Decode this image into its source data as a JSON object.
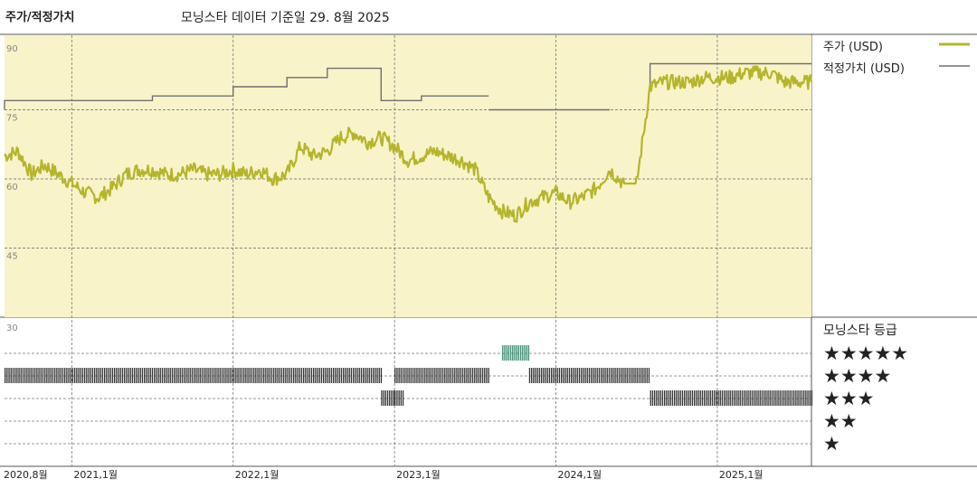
{
  "header": {
    "left_title": "주가/적정가치",
    "main_title": "모닝스타 데이터 기준일 29. 8월 2025"
  },
  "legend": {
    "price_label": "주가 (USD)",
    "fair_label": "적정가치 (USD)",
    "rating_title": "모닝스타 등급"
  },
  "colors": {
    "plot_bg": "#f8f3c9",
    "price": "#b5b52a",
    "fair_value": "#707070",
    "rating_bar": "#333333",
    "rating_five": "#3a8a6e"
  },
  "chart_data": {
    "type": "line",
    "x_range": [
      "2020-08",
      "2025-08"
    ],
    "ylim": [
      30,
      90
    ],
    "y_ticks": [
      90,
      75,
      60,
      45,
      30
    ],
    "x_tick_labels": [
      "2020,8월",
      "2021,1월",
      "2022,1월",
      "2023,1월",
      "2024,1월",
      "2025,1월"
    ],
    "series": [
      {
        "name": "주가 (USD)",
        "points": [
          [
            "2020-08",
            65
          ],
          [
            "2020-09",
            66
          ],
          [
            "2020-10",
            61
          ],
          [
            "2020-11",
            63
          ],
          [
            "2020-12",
            61
          ],
          [
            "2021-01",
            59
          ],
          [
            "2021-02",
            57
          ],
          [
            "2021-03",
            56
          ],
          [
            "2021-04",
            58
          ],
          [
            "2021-05",
            61
          ],
          [
            "2021-06",
            62
          ],
          [
            "2021-07",
            62
          ],
          [
            "2021-08",
            61
          ],
          [
            "2021-09",
            61
          ],
          [
            "2021-10",
            62
          ],
          [
            "2021-11",
            61
          ],
          [
            "2021-12",
            61
          ],
          [
            "2022-01",
            62
          ],
          [
            "2022-02",
            61
          ],
          [
            "2022-03",
            62
          ],
          [
            "2022-04",
            60
          ],
          [
            "2022-05",
            61
          ],
          [
            "2022-06",
            67
          ],
          [
            "2022-07",
            65
          ],
          [
            "2022-08",
            66
          ],
          [
            "2022-09",
            69
          ],
          [
            "2022-10",
            70
          ],
          [
            "2022-11",
            68
          ],
          [
            "2022-12",
            69
          ],
          [
            "2023-01",
            67
          ],
          [
            "2023-02",
            64
          ],
          [
            "2023-03",
            65
          ],
          [
            "2023-04",
            66
          ],
          [
            "2023-05",
            65
          ],
          [
            "2023-06",
            64
          ],
          [
            "2023-07",
            62
          ],
          [
            "2023-08",
            56
          ],
          [
            "2023-09",
            53
          ],
          [
            "2023-10",
            52
          ],
          [
            "2023-11",
            55
          ],
          [
            "2023-12",
            56
          ],
          [
            "2024-01",
            57
          ],
          [
            "2024-02",
            55
          ],
          [
            "2024-03",
            56
          ],
          [
            "2024-04",
            58
          ],
          [
            "2024-05",
            62
          ],
          [
            "2024-06",
            59
          ],
          [
            "2024-07",
            59
          ],
          [
            "2024-08",
            80
          ],
          [
            "2024-09",
            81
          ],
          [
            "2024-10",
            81
          ],
          [
            "2024-11",
            81
          ],
          [
            "2024-12",
            82
          ],
          [
            "2025-01",
            82
          ],
          [
            "2025-02",
            82
          ],
          [
            "2025-03",
            83
          ],
          [
            "2025-04",
            83
          ],
          [
            "2025-05",
            83
          ],
          [
            "2025-06",
            81
          ],
          [
            "2025-07",
            81
          ],
          [
            "2025-08",
            81
          ]
        ]
      },
      {
        "name": "적정가치 (USD)",
        "segments": [
          [
            [
              "2020-08",
              75
            ],
            [
              "2020-08",
              77
            ],
            [
              "2021-07",
              77
            ],
            [
              "2021-07",
              78
            ],
            [
              "2022-01",
              78
            ],
            [
              "2022-01",
              80
            ],
            [
              "2022-05",
              80
            ],
            [
              "2022-05",
              82
            ],
            [
              "2022-08",
              82
            ],
            [
              "2022-08",
              84
            ],
            [
              "2022-12",
              84
            ],
            [
              "2022-12",
              77
            ],
            [
              "2023-03",
              77
            ],
            [
              "2023-03",
              78
            ],
            [
              "2023-08",
              78
            ]
          ],
          [
            [
              "2023-08",
              75
            ],
            [
              "2024-05",
              75
            ]
          ],
          [
            [
              "2024-08",
              80
            ],
            [
              "2024-08",
              85
            ],
            [
              "2025-08",
              85
            ]
          ]
        ]
      }
    ],
    "star_rating": {
      "ylabels": [
        "★★★★★",
        "★★★★",
        "★★★",
        "★★",
        "★"
      ],
      "periods": [
        {
          "rating": 4,
          "from": "2020-08",
          "to": "2022-12"
        },
        {
          "rating": 3,
          "from": "2022-12",
          "to": "2023-01"
        },
        {
          "rating": 4,
          "from": "2023-01",
          "to": "2023-08"
        },
        {
          "rating": 3,
          "from": "2023-01",
          "to": "2023-01"
        },
        {
          "rating": 5,
          "from": "2023-09",
          "to": "2023-11"
        },
        {
          "rating": 4,
          "from": "2023-11",
          "to": "2024-08"
        },
        {
          "rating": 3,
          "from": "2024-08",
          "to": "2025-08"
        }
      ]
    }
  }
}
